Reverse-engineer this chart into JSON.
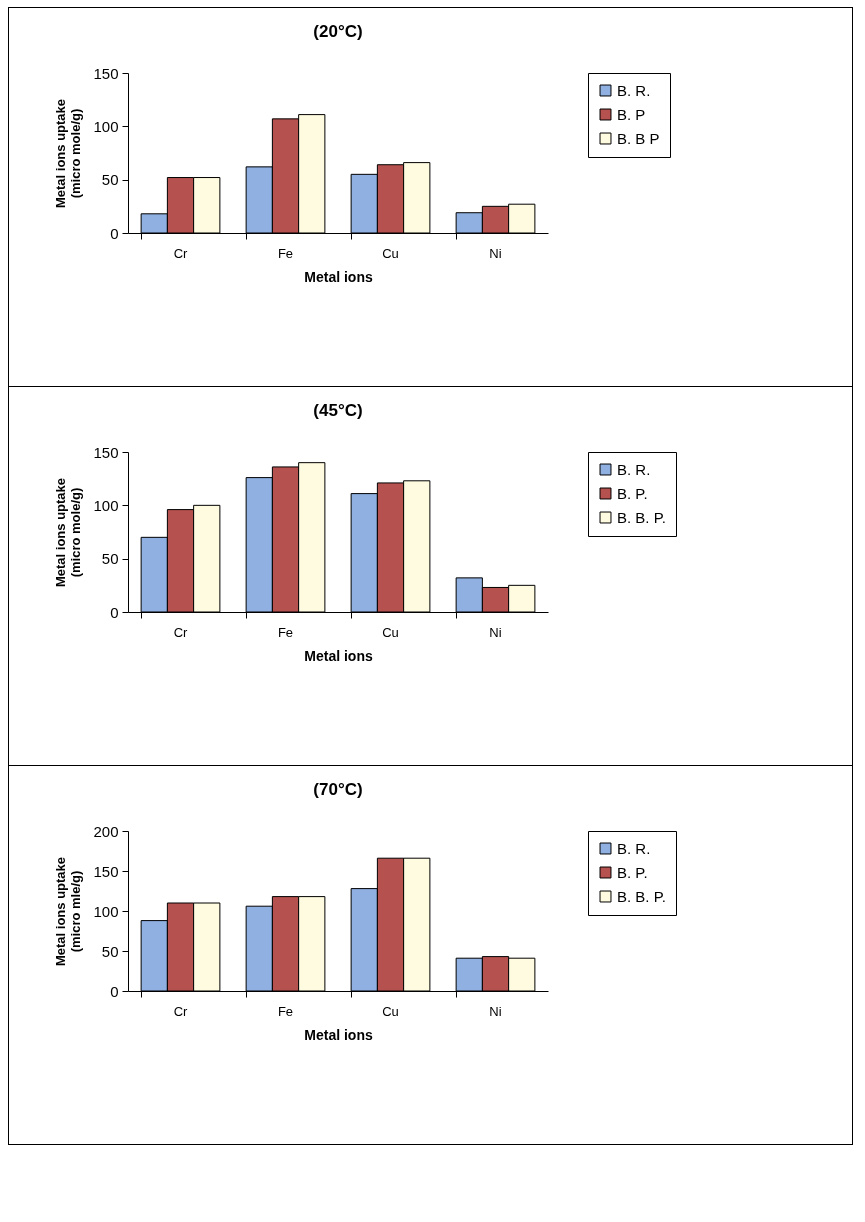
{
  "chart_data": [
    {
      "type": "bar",
      "title": "(20°C)",
      "xlabel": "Metal ions",
      "ylabel": "Metal ions uptake\n(micro mole/g)",
      "categories": [
        "Cr",
        "Fe",
        "Cu",
        "Ni"
      ],
      "ylim": [
        0,
        150
      ],
      "yticks": [
        0,
        50,
        100,
        150
      ],
      "grid": false,
      "legend": "right",
      "series": [
        {
          "name": "B. R.",
          "color": "#8fb0e0",
          "values": [
            18,
            62,
            55,
            19
          ]
        },
        {
          "name": "B. P",
          "color": "#b5514f",
          "values": [
            52,
            107,
            64,
            25
          ]
        },
        {
          "name": "B. B P",
          "color": "#fffbe0",
          "values": [
            52,
            111,
            66,
            27
          ]
        }
      ]
    },
    {
      "type": "bar",
      "title": "(45°C)",
      "xlabel": "Metal ions",
      "ylabel": "Metal ions uptake\n(micro mole/g)",
      "categories": [
        "Cr",
        "Fe",
        "Cu",
        "Ni"
      ],
      "ylim": [
        0,
        150
      ],
      "yticks": [
        0,
        50,
        100,
        150
      ],
      "grid": false,
      "legend": "right",
      "series": [
        {
          "name": "B. R.",
          "color": "#8fb0e0",
          "values": [
            70,
            126,
            111,
            32
          ]
        },
        {
          "name": "B. P.",
          "color": "#b5514f",
          "values": [
            96,
            136,
            121,
            23
          ]
        },
        {
          "name": "B. B. P.",
          "color": "#fffbe0",
          "values": [
            100,
            140,
            123,
            25
          ]
        }
      ]
    },
    {
      "type": "bar",
      "title": "(70°C)",
      "xlabel": "Metal ions",
      "ylabel": "Metal ions uptake\n(micro mle/g)",
      "categories": [
        "Cr",
        "Fe",
        "Cu",
        "Ni"
      ],
      "ylim": [
        0,
        200
      ],
      "yticks": [
        0,
        50,
        100,
        150,
        200
      ],
      "grid": false,
      "legend": "right",
      "series": [
        {
          "name": "B. R.",
          "color": "#8fb0e0",
          "values": [
            88,
            106,
            128,
            41
          ]
        },
        {
          "name": "B. P.",
          "color": "#b5514f",
          "values": [
            110,
            118,
            166,
            43
          ]
        },
        {
          "name": "B. B. P.",
          "color": "#fffbe0",
          "values": [
            110,
            118,
            166,
            41
          ]
        }
      ]
    }
  ]
}
